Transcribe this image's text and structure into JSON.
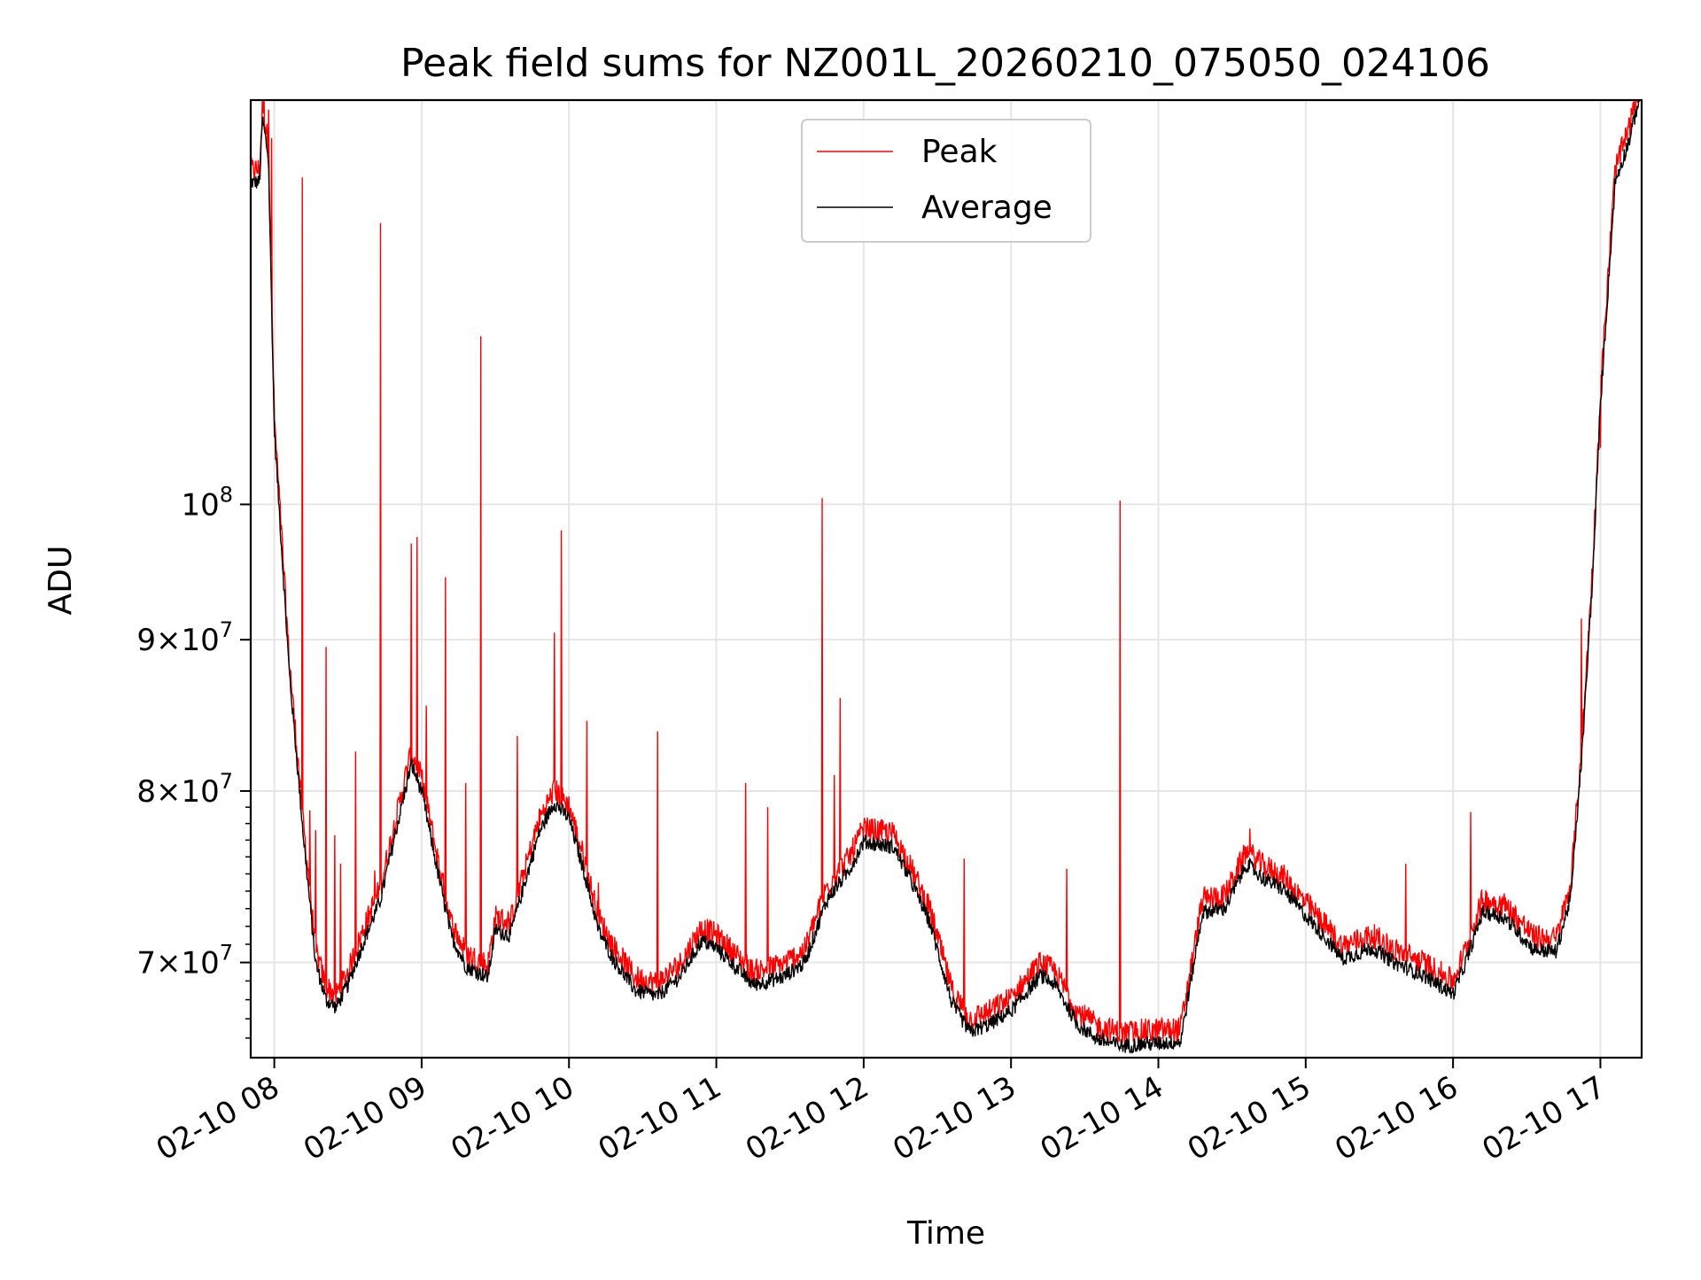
{
  "chart_data": {
    "type": "line",
    "title": "Peak field sums for NZ001L_20260210_075050_024106",
    "xlabel": "Time",
    "ylabel": "ADU",
    "yscale": "log",
    "grid": true,
    "legend_position": "top-center",
    "xlim_hours": [
      7.84,
      17.28
    ],
    "ylim": [
      65000000,
      137000000
    ],
    "x_ticks": [
      {
        "hour": 8,
        "label": "02-10 08"
      },
      {
        "hour": 9,
        "label": "02-10 09"
      },
      {
        "hour": 10,
        "label": "02-10 10"
      },
      {
        "hour": 11,
        "label": "02-10 11"
      },
      {
        "hour": 12,
        "label": "02-10 12"
      },
      {
        "hour": 13,
        "label": "02-10 13"
      },
      {
        "hour": 14,
        "label": "02-10 14"
      },
      {
        "hour": 15,
        "label": "02-10 15"
      },
      {
        "hour": 16,
        "label": "02-10 16"
      },
      {
        "hour": 17,
        "label": "02-10 17"
      }
    ],
    "y_ticks": [
      {
        "value": 70000000,
        "mantissa": "7",
        "exponent": "7"
      },
      {
        "value": 80000000,
        "mantissa": "8",
        "exponent": "7"
      },
      {
        "value": 90000000,
        "mantissa": "9",
        "exponent": "7"
      },
      {
        "value": 100000000,
        "mantissa": "",
        "exponent": "8"
      }
    ],
    "series": [
      {
        "name": "Peak",
        "color": "#ff0000"
      },
      {
        "name": "Average",
        "color": "#000000"
      }
    ],
    "average_profile": [
      [
        7.84,
        128500000
      ],
      [
        7.9,
        128500000
      ],
      [
        7.92,
        135000000
      ],
      [
        7.96,
        131000000
      ],
      [
        8.0,
        106000000
      ],
      [
        8.1,
        88000000
      ],
      [
        8.2,
        77000000
      ],
      [
        8.28,
        70000000
      ],
      [
        8.35,
        68000000
      ],
      [
        8.42,
        67600000
      ],
      [
        8.5,
        68800000
      ],
      [
        8.6,
        71000000
      ],
      [
        8.72,
        73500000
      ],
      [
        8.85,
        78500000
      ],
      [
        8.93,
        81700000
      ],
      [
        9.0,
        80000000
      ],
      [
        9.1,
        75500000
      ],
      [
        9.2,
        71500000
      ],
      [
        9.3,
        69800000
      ],
      [
        9.45,
        69200000
      ],
      [
        9.5,
        71800000
      ],
      [
        9.6,
        71500000
      ],
      [
        9.7,
        74500000
      ],
      [
        9.8,
        77500000
      ],
      [
        9.9,
        79300000
      ],
      [
        10.0,
        78300000
      ],
      [
        10.1,
        75200000
      ],
      [
        10.2,
        71800000
      ],
      [
        10.3,
        70200000
      ],
      [
        10.45,
        68500000
      ],
      [
        10.6,
        68200000
      ],
      [
        10.75,
        69200000
      ],
      [
        10.9,
        71200000
      ],
      [
        11.0,
        70800000
      ],
      [
        11.1,
        70000000
      ],
      [
        11.25,
        68800000
      ],
      [
        11.45,
        69200000
      ],
      [
        11.6,
        70000000
      ],
      [
        11.75,
        73500000
      ],
      [
        11.9,
        75200000
      ],
      [
        12.0,
        76900000
      ],
      [
        12.2,
        76600000
      ],
      [
        12.3,
        75000000
      ],
      [
        12.45,
        72200000
      ],
      [
        12.6,
        67800000
      ],
      [
        12.72,
        66300000
      ],
      [
        12.85,
        66700000
      ],
      [
        13.0,
        67400000
      ],
      [
        13.2,
        69300000
      ],
      [
        13.3,
        68800000
      ],
      [
        13.45,
        66700000
      ],
      [
        13.6,
        65900000
      ],
      [
        13.75,
        65600000
      ],
      [
        13.9,
        65700000
      ],
      [
        14.15,
        65800000
      ],
      [
        14.3,
        72800000
      ],
      [
        14.45,
        73000000
      ],
      [
        14.6,
        75600000
      ],
      [
        14.7,
        74800000
      ],
      [
        14.85,
        74100000
      ],
      [
        15.0,
        72600000
      ],
      [
        15.15,
        71200000
      ],
      [
        15.25,
        70200000
      ],
      [
        15.45,
        70800000
      ],
      [
        15.6,
        70000000
      ],
      [
        15.8,
        69300000
      ],
      [
        16.0,
        68300000
      ],
      [
        16.1,
        70300000
      ],
      [
        16.2,
        72800000
      ],
      [
        16.35,
        72500000
      ],
      [
        16.55,
        70700000
      ],
      [
        16.7,
        70600000
      ],
      [
        16.8,
        73700000
      ],
      [
        16.88,
        83000000
      ],
      [
        16.95,
        95000000
      ],
      [
        17.0,
        108000000
      ],
      [
        17.1,
        128500000
      ],
      [
        17.2,
        133000000
      ],
      [
        17.26,
        137000000
      ]
    ],
    "peak_spikes": [
      [
        7.86,
        129500000
      ],
      [
        7.93,
        137000000
      ],
      [
        7.96,
        136000000
      ],
      [
        7.98,
        133000000
      ],
      [
        8.19,
        129000000
      ],
      [
        8.24,
        78800000
      ],
      [
        8.28,
        77600000
      ],
      [
        8.35,
        89500000
      ],
      [
        8.41,
        77300000
      ],
      [
        8.45,
        75600000
      ],
      [
        8.55,
        82500000
      ],
      [
        8.68,
        75200000
      ],
      [
        8.72,
        124500000
      ],
      [
        8.93,
        97000000
      ],
      [
        8.97,
        97500000
      ],
      [
        9.03,
        85500000
      ],
      [
        9.16,
        94500000
      ],
      [
        9.3,
        80500000
      ],
      [
        9.4,
        114000000
      ],
      [
        9.65,
        83500000
      ],
      [
        9.9,
        90500000
      ],
      [
        9.95,
        98000000
      ],
      [
        10.12,
        84500000
      ],
      [
        10.6,
        83800000
      ],
      [
        10.2,
        74500000
      ],
      [
        11.2,
        80500000
      ],
      [
        11.35,
        79000000
      ],
      [
        11.72,
        100500000
      ],
      [
        11.84,
        86000000
      ],
      [
        11.8,
        81000000
      ],
      [
        12.68,
        75900000
      ],
      [
        13.38,
        75300000
      ],
      [
        13.74,
        100300000
      ],
      [
        14.62,
        77700000
      ],
      [
        15.68,
        75600000
      ],
      [
        16.12,
        78700000
      ],
      [
        16.87,
        91500000
      ],
      [
        17.0,
        104500000
      ]
    ]
  }
}
